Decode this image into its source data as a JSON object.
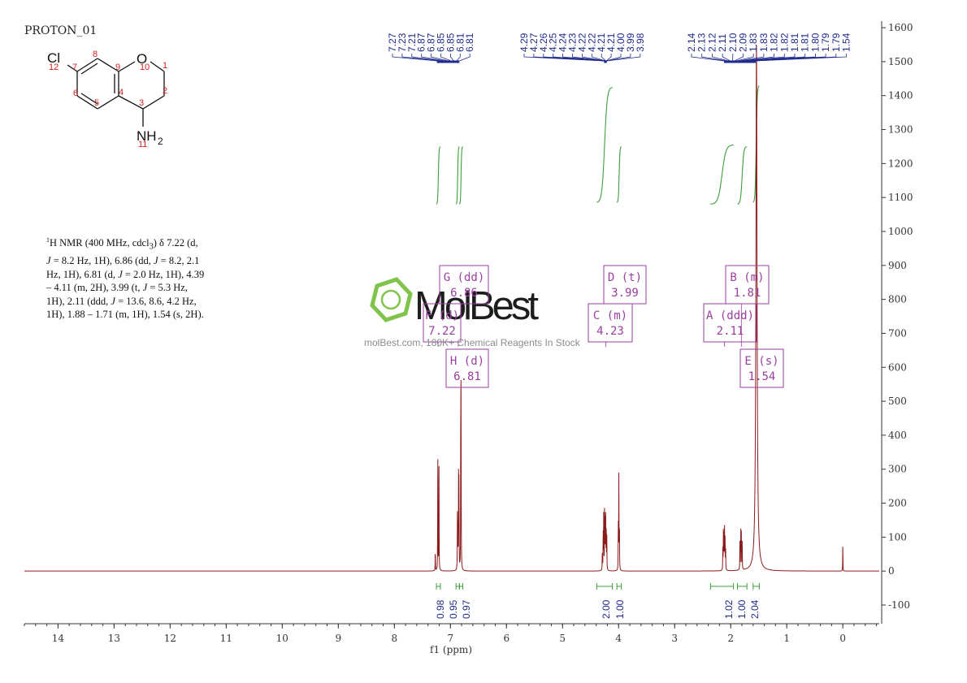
{
  "title": "PROTON_01",
  "molecule": {
    "atoms": {
      "cl": "Cl",
      "o": "O",
      "nh": "NH",
      "sub2": "2"
    },
    "numbers": [
      "1",
      "2",
      "3",
      "4",
      "5",
      "6",
      "7",
      "8",
      "9",
      "10",
      "11",
      "12"
    ]
  },
  "description": {
    "head_sup": "1",
    "head": "H NMR (400 MHz, cdcl",
    "head_sub": "3",
    "head_tail": ") δ",
    "body_1": "7.22 (d, ",
    "j": "J",
    "body_2": " = 8.2 Hz, 1H), 6.86 (dd, ",
    "body_3": " = 8.2, 2.1 Hz, 1H), 6.81 (d, ",
    "body_4": " = 2.0 Hz, 1H), 4.39 – 4.11 (m, 2H), 3.99 (t, ",
    "body_5": " = 5.3 Hz, 1H), 2.11 (ddd, ",
    "body_6": " = 13.6, 8.6, 4.2 Hz, 1H), 1.88 – 1.71 (m, 1H), 1.54 (s, 2H)."
  },
  "watermark": {
    "brand": "MolBest",
    "tagline": "molBest.com, 180K+ Chemical Reagents In Stock"
  },
  "colors": {
    "spectrum": "#8b1a1a",
    "integral": "#3c9e3c",
    "peak_label": "#1f2a8c",
    "multiplet": "#9b3fa0",
    "atom_number": "#d42020",
    "logo": "#7ac142"
  },
  "chart_data": {
    "type": "line",
    "title": "",
    "xlabel": "f1 (ppm)",
    "ylabel": "",
    "xlim": [
      14.6,
      -0.65
    ],
    "ylim": [
      -155,
      1605
    ],
    "x_ticks": [
      14,
      13,
      12,
      11,
      10,
      9,
      8,
      7,
      6,
      5,
      4,
      3,
      2,
      1,
      0
    ],
    "y_ticks": [
      1600,
      1500,
      1400,
      1300,
      1200,
      1100,
      1000,
      900,
      800,
      700,
      600,
      500,
      400,
      300,
      200,
      100,
      0,
      -100
    ],
    "peaks": [
      {
        "ppm": 7.27,
        "height": 60,
        "width": 0.0025
      },
      {
        "ppm": 7.225,
        "height": 350,
        "width": 0.0025
      },
      {
        "ppm": 7.205,
        "height": 380,
        "width": 0.0025
      },
      {
        "ppm": 6.875,
        "height": 155,
        "width": 0.0025
      },
      {
        "ppm": 6.868,
        "height": 145,
        "width": 0.0025
      },
      {
        "ppm": 6.855,
        "height": 260,
        "width": 0.0025
      },
      {
        "ppm": 6.848,
        "height": 270,
        "width": 0.0025
      },
      {
        "ppm": 6.815,
        "height": 470,
        "width": 0.0025
      },
      {
        "ppm": 6.81,
        "height": 480,
        "width": 0.0025
      },
      {
        "ppm": 4.29,
        "height": 60,
        "width": 0.0025
      },
      {
        "ppm": 4.275,
        "height": 120,
        "width": 0.0025
      },
      {
        "ppm": 4.265,
        "height": 160,
        "width": 0.0025
      },
      {
        "ppm": 4.25,
        "height": 175,
        "width": 0.0025
      },
      {
        "ppm": 4.24,
        "height": 170,
        "width": 0.0025
      },
      {
        "ppm": 4.23,
        "height": 150,
        "width": 0.0025
      },
      {
        "ppm": 4.22,
        "height": 130,
        "width": 0.0025
      },
      {
        "ppm": 4.21,
        "height": 100,
        "width": 0.0025
      },
      {
        "ppm": 4.005,
        "height": 140,
        "width": 0.0025
      },
      {
        "ppm": 3.995,
        "height": 280,
        "width": 0.0025
      },
      {
        "ppm": 3.985,
        "height": 140,
        "width": 0.0025
      },
      {
        "ppm": 2.14,
        "height": 70,
        "width": 0.0025
      },
      {
        "ppm": 2.13,
        "height": 110,
        "width": 0.0025
      },
      {
        "ppm": 2.12,
        "height": 130,
        "width": 0.0025
      },
      {
        "ppm": 2.11,
        "height": 120,
        "width": 0.0025
      },
      {
        "ppm": 2.1,
        "height": 100,
        "width": 0.0025
      },
      {
        "ppm": 2.09,
        "height": 65,
        "width": 0.0025
      },
      {
        "ppm": 1.835,
        "height": 95,
        "width": 0.0025
      },
      {
        "ppm": 1.82,
        "height": 120,
        "width": 0.0025
      },
      {
        "ppm": 1.81,
        "height": 110,
        "width": 0.0025
      },
      {
        "ppm": 1.795,
        "height": 90,
        "width": 0.0025
      },
      {
        "ppm": 1.54,
        "height": 1555,
        "width": 0.012
      },
      {
        "ppm": 0.0,
        "height": 92,
        "width": 0.002
      }
    ],
    "peak_labels": [
      {
        "group": 1,
        "values": [
          "7.27",
          "7.23",
          "7.21",
          "6.87",
          "6.87",
          "6.85",
          "6.85",
          "6.81",
          "6.81"
        ],
        "anchor_ppm": [
          7.24,
          6.84
        ]
      },
      {
        "group": 2,
        "values": [
          "4.29",
          "4.27",
          "4.26",
          "4.25",
          "4.24",
          "4.23",
          "4.22",
          "4.22",
          "4.21",
          "4.21",
          "4.00",
          "3.99",
          "3.98"
        ],
        "anchor_ppm": [
          4.26,
          4.21
        ]
      },
      {
        "group": 3,
        "values": [
          "2.14",
          "2.13",
          "2.12",
          "2.11",
          "2.10",
          "2.09",
          "1.83",
          "1.83",
          "1.82",
          "1.82",
          "1.81",
          "1.81",
          "1.80",
          "1.79",
          "1.79",
          "1.54"
        ],
        "anchor_ppm": [
          2.12,
          1.55
        ]
      }
    ],
    "integrals": [
      {
        "from": 7.25,
        "to": 7.18,
        "value": "0.98"
      },
      {
        "from": 6.9,
        "to": 6.84,
        "value": "0.95"
      },
      {
        "from": 6.84,
        "to": 6.78,
        "value": "0.97"
      },
      {
        "from": 4.39,
        "to": 4.11,
        "value": "2.00"
      },
      {
        "from": 4.03,
        "to": 3.95,
        "value": "1.00"
      },
      {
        "from": 2.36,
        "to": 1.95,
        "value": "1.02"
      },
      {
        "from": 1.88,
        "to": 1.71,
        "value": "1.00"
      },
      {
        "from": 1.6,
        "to": 1.49,
        "value": "2.04"
      }
    ],
    "multiplets": [
      {
        "letter": "G",
        "type": "dd",
        "shift": "6.86"
      },
      {
        "letter": "F",
        "type": "d",
        "shift": "7.22"
      },
      {
        "letter": "H",
        "type": "d",
        "shift": "6.81"
      },
      {
        "letter": "D",
        "type": "t",
        "shift": "3.99"
      },
      {
        "letter": "C",
        "type": "m",
        "shift": "4.23"
      },
      {
        "letter": "B",
        "type": "m",
        "shift": "1.81"
      },
      {
        "letter": "A",
        "type": "ddd",
        "shift": "2.11"
      },
      {
        "letter": "E",
        "type": "s",
        "shift": "1.54"
      }
    ]
  }
}
